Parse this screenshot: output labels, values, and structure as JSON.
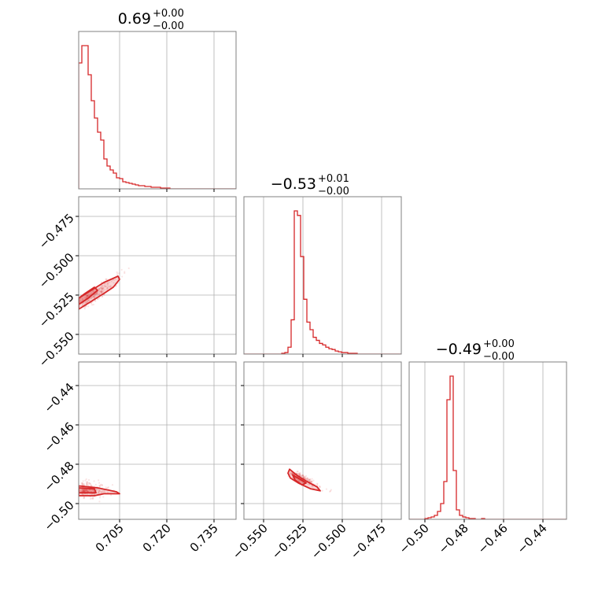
{
  "chart_data": {
    "type": "corner",
    "color": "#d62728",
    "grid": true,
    "parameters": [
      {
        "range": [
          0.692,
          0.742
        ],
        "ticks": [
          0.705,
          0.72,
          0.735
        ],
        "tick_labels": [
          "0.705",
          "0.720",
          "0.735"
        ]
      },
      {
        "range": [
          -0.5625,
          -0.4625
        ],
        "ticks": [
          -0.55,
          -0.525,
          -0.5,
          -0.475
        ],
        "tick_labels": [
          "−0.550",
          "−0.525",
          "−0.500",
          "−0.475"
        ]
      },
      {
        "range": [
          -0.508,
          -0.428
        ],
        "ticks": [
          -0.5,
          -0.48,
          -0.46,
          -0.44
        ],
        "tick_labels": [
          "−0.50",
          "−0.48",
          "−0.46",
          "−0.44"
        ]
      }
    ],
    "titles": [
      {
        "value": "0.69",
        "upper": "+0.00",
        "lower": "−0.00"
      },
      {
        "value": "−0.53",
        "upper": "+0.01",
        "lower": "−0.00"
      },
      {
        "value": "−0.49",
        "upper": "+0.00",
        "lower": "−0.00"
      }
    ],
    "histograms": [
      {
        "bin_start": 0.692,
        "bin_width": 0.001,
        "counts": [
          160,
          182,
          182,
          145,
          112,
          90,
          72,
          62,
          38,
          29,
          24,
          20,
          14,
          13,
          9,
          8,
          7,
          6,
          5,
          4,
          4,
          3,
          3,
          2,
          2,
          2,
          1,
          1,
          1,
          0,
          0,
          0,
          0,
          0,
          0,
          0,
          0,
          0,
          0,
          0,
          0,
          0,
          0,
          0,
          0,
          0,
          0,
          0,
          0,
          0
        ]
      },
      {
        "bin_start": -0.5625,
        "bin_width": 0.002,
        "counts": [
          0,
          0,
          0,
          0,
          0,
          0,
          0,
          0,
          0,
          0,
          0,
          0,
          1,
          2,
          9,
          45,
          188,
          182,
          128,
          72,
          42,
          32,
          22,
          18,
          14,
          12,
          9,
          7,
          6,
          4,
          3,
          2,
          2,
          1,
          1,
          1,
          0,
          0,
          0,
          0,
          0,
          0,
          0,
          0,
          0,
          0,
          0,
          0,
          0,
          0
        ]
      },
      {
        "bin_start": -0.508,
        "bin_width": 0.0016,
        "counts": [
          0,
          0,
          0,
          0,
          0,
          1,
          2,
          3,
          5,
          10,
          20,
          48,
          152,
          182,
          62,
          12,
          5,
          3,
          2,
          1,
          1,
          0,
          0,
          1,
          0,
          0,
          0,
          0,
          0,
          0,
          0,
          0,
          0,
          0,
          0,
          0,
          0,
          0,
          0,
          0,
          0,
          0,
          0,
          0,
          0,
          0,
          0,
          0,
          0,
          0
        ]
      }
    ],
    "contours": [
      {
        "x": 0,
        "y": 1,
        "levels": [
          [
            [
              0.692,
              -0.534
            ],
            [
              0.696,
              -0.529
            ],
            [
              0.7,
              -0.524
            ],
            [
              0.703,
              -0.52
            ],
            [
              0.705,
              -0.515
            ],
            [
              0.7045,
              -0.513
            ],
            [
              0.7,
              -0.517
            ],
            [
              0.696,
              -0.522
            ],
            [
              0.692,
              -0.527
            ]
          ],
          [
            [
              0.692,
              -0.531
            ],
            [
              0.695,
              -0.527
            ],
            [
              0.698,
              -0.522
            ],
            [
              0.697,
              -0.52
            ],
            [
              0.694,
              -0.524
            ],
            [
              0.692,
              -0.527
            ]
          ]
        ]
      },
      {
        "x": 0,
        "y": 2,
        "levels": [
          [
            [
              0.692,
              -0.491
            ],
            [
              0.698,
              -0.492
            ],
            [
              0.704,
              -0.494
            ],
            [
              0.705,
              -0.495
            ],
            [
              0.7,
              -0.495
            ],
            [
              0.697,
              -0.496
            ],
            [
              0.692,
              -0.496
            ]
          ],
          [
            [
              0.692,
              -0.492
            ],
            [
              0.697,
              -0.4925
            ],
            [
              0.6975,
              -0.4945
            ],
            [
              0.692,
              -0.4945
            ]
          ]
        ]
      },
      {
        "x": 1,
        "y": 2,
        "levels": [
          [
            [
              -0.5335,
              -0.4825
            ],
            [
              -0.529,
              -0.4855
            ],
            [
              -0.523,
              -0.4885
            ],
            [
              -0.516,
              -0.4915
            ],
            [
              -0.514,
              -0.4935
            ],
            [
              -0.52,
              -0.4925
            ],
            [
              -0.528,
              -0.4895
            ],
            [
              -0.533,
              -0.487
            ],
            [
              -0.5345,
              -0.4845
            ]
          ],
          [
            [
              -0.5315,
              -0.4855
            ],
            [
              -0.527,
              -0.4875
            ],
            [
              -0.523,
              -0.4895
            ],
            [
              -0.5255,
              -0.4905
            ],
            [
              -0.53,
              -0.488
            ]
          ]
        ]
      }
    ]
  }
}
